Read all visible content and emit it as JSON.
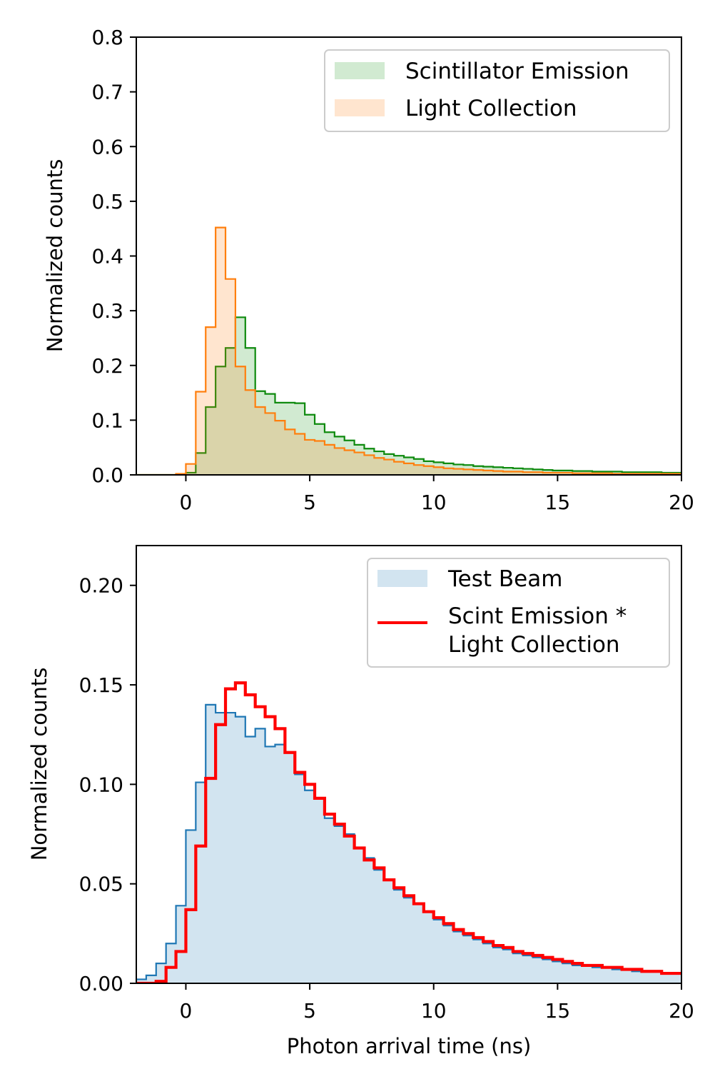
{
  "chart_data": [
    {
      "type": "area",
      "title": "",
      "xlabel": "",
      "ylabel": "Normalized counts",
      "xlim": [
        -2,
        20
      ],
      "ylim": [
        0,
        0.8
      ],
      "x_ticks": [
        0,
        5,
        10,
        15,
        20
      ],
      "y_ticks": [
        "0.0",
        "0.1",
        "0.2",
        "0.3",
        "0.4",
        "0.5",
        "0.6",
        "0.7",
        "0.8"
      ],
      "grid": false,
      "legend_position": "top-right",
      "bin_width": 0.4,
      "series": [
        {
          "name": "Scintillator Emission",
          "style": "step-filled",
          "fill_color": "#2ca02c",
          "fill_opacity": 0.22,
          "line_color": "#0e8a0e",
          "x_start": -2.0,
          "values": [
            0,
            0,
            0,
            0,
            0,
            0.004,
            0.04,
            0.124,
            0.198,
            0.232,
            0.288,
            0.232,
            0.153,
            0.148,
            0.132,
            0.132,
            0.131,
            0.11,
            0.093,
            0.078,
            0.07,
            0.063,
            0.055,
            0.048,
            0.043,
            0.038,
            0.035,
            0.032,
            0.029,
            0.025,
            0.023,
            0.021,
            0.019,
            0.018,
            0.016,
            0.015,
            0.014,
            0.013,
            0.012,
            0.011,
            0.01,
            0.009,
            0.008,
            0.008,
            0.007,
            0.007,
            0.006,
            0.006,
            0.006,
            0.005,
            0.005,
            0.005,
            0.005,
            0.004,
            0.004,
            0.004
          ]
        },
        {
          "name": "Light Collection",
          "style": "step-filled",
          "fill_color": "#ff7f0e",
          "fill_opacity": 0.2,
          "line_color": "#ff7f0e",
          "x_start": -2.0,
          "values": [
            0,
            0,
            0,
            0,
            0.002,
            0.02,
            0.152,
            0.27,
            0.452,
            0.358,
            0.198,
            0.155,
            0.124,
            0.113,
            0.099,
            0.083,
            0.075,
            0.064,
            0.062,
            0.055,
            0.049,
            0.045,
            0.041,
            0.036,
            0.031,
            0.028,
            0.024,
            0.021,
            0.018,
            0.016,
            0.014,
            0.012,
            0.011,
            0.01,
            0.009,
            0.008,
            0.007,
            0.006,
            0.006,
            0.005,
            0.005,
            0.004,
            0.004,
            0.004,
            0.003,
            0.003,
            0.003,
            0.003,
            0.002,
            0.002,
            0.002,
            0.002,
            0.002,
            0.002,
            0.002,
            0.002
          ]
        }
      ]
    },
    {
      "type": "area",
      "title": "",
      "xlabel": "Photon arrival time (ns)",
      "ylabel": "Normalized counts",
      "xlim": [
        -2,
        20
      ],
      "ylim": [
        0,
        0.22
      ],
      "x_ticks": [
        0,
        5,
        10,
        15,
        20
      ],
      "y_ticks": [
        "0.00",
        "0.05",
        "0.10",
        "0.15",
        "0.20"
      ],
      "grid": false,
      "legend_position": "top-right",
      "bin_width": 0.4,
      "series": [
        {
          "name": "Test Beam",
          "style": "step-filled",
          "fill_color": "#1f77b4",
          "fill_opacity": 0.2,
          "line_color": "#1f77b4",
          "x_start": -2.0,
          "values": [
            0.002,
            0.004,
            0.01,
            0.02,
            0.039,
            0.077,
            0.101,
            0.14,
            0.136,
            0.136,
            0.134,
            0.124,
            0.128,
            0.119,
            0.12,
            0.116,
            0.105,
            0.097,
            0.093,
            0.083,
            0.079,
            0.075,
            0.068,
            0.063,
            0.057,
            0.052,
            0.047,
            0.043,
            0.04,
            0.036,
            0.032,
            0.029,
            0.026,
            0.024,
            0.022,
            0.02,
            0.018,
            0.017,
            0.015,
            0.014,
            0.013,
            0.012,
            0.011,
            0.01,
            0.009,
            0.009,
            0.008,
            0.008,
            0.007,
            0.007,
            0.006,
            0.006,
            0.006,
            0.005,
            0.005
          ]
        },
        {
          "name": "Scint Emission * Light Collection",
          "legend_lines": [
            "Scint Emission *",
            "Light Collection"
          ],
          "style": "step-line",
          "line_color": "#ff0000",
          "x_start": -2.0,
          "values": [
            0,
            0,
            0.001,
            0.008,
            0.016,
            0.037,
            0.069,
            0.103,
            0.13,
            0.148,
            0.151,
            0.145,
            0.139,
            0.134,
            0.128,
            0.116,
            0.106,
            0.1,
            0.093,
            0.085,
            0.08,
            0.074,
            0.068,
            0.062,
            0.058,
            0.052,
            0.048,
            0.044,
            0.04,
            0.036,
            0.033,
            0.03,
            0.027,
            0.025,
            0.023,
            0.021,
            0.019,
            0.018,
            0.016,
            0.015,
            0.014,
            0.013,
            0.012,
            0.011,
            0.01,
            0.009,
            0.009,
            0.008,
            0.008,
            0.007,
            0.007,
            0.006,
            0.006,
            0.005,
            0.005,
            0.005
          ]
        }
      ]
    }
  ]
}
